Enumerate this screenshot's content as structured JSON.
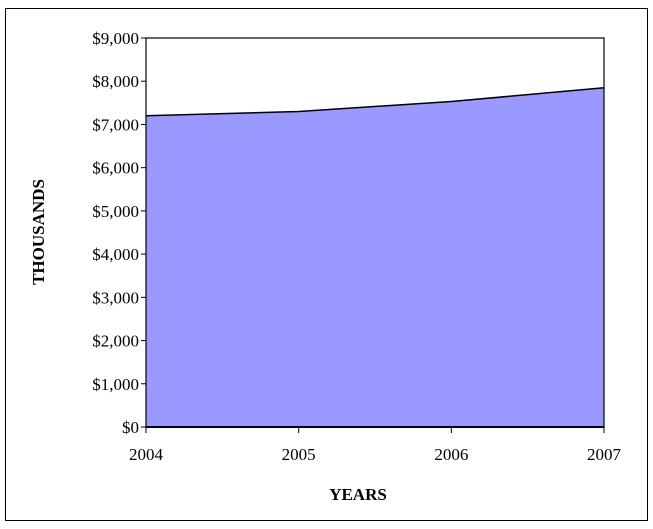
{
  "chart_data": {
    "type": "area",
    "categories": [
      "2004",
      "2005",
      "2006",
      "2007"
    ],
    "series": [
      {
        "values": [
          7200,
          7300,
          7530,
          7850
        ],
        "color": "#9999ff"
      }
    ],
    "title": "",
    "xlabel": "YEARS",
    "ylabel": "THOUSANDS",
    "ylim": [
      0,
      9000
    ],
    "yticks": [
      {
        "value": 0,
        "label": "$0"
      },
      {
        "value": 1000,
        "label": "$1,000"
      },
      {
        "value": 2000,
        "label": "$2,000"
      },
      {
        "value": 3000,
        "label": "$3,000"
      },
      {
        "value": 4000,
        "label": "$4,000"
      },
      {
        "value": 5000,
        "label": "$5,000"
      },
      {
        "value": 6000,
        "label": "$6,000"
      },
      {
        "value": 7000,
        "label": "$7,000"
      },
      {
        "value": 8000,
        "label": "$8,000"
      },
      {
        "value": 9000,
        "label": "$9,000"
      }
    ],
    "grid": false,
    "legend": "none",
    "line_color": "#000000"
  }
}
